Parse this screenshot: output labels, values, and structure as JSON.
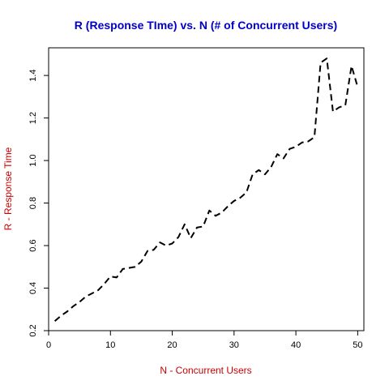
{
  "colors": {
    "title": "#0000cc",
    "axis_label": "#cc0000",
    "line": "#000000",
    "axis": "#000000",
    "background": "#ffffff"
  },
  "chart_data": {
    "type": "line",
    "title": "R (Response TIme) vs. N (# of Concurrent Users)",
    "xlabel": "N - Concurrent Users",
    "ylabel": "R - Response Time",
    "xlim": [
      0,
      51
    ],
    "ylim": [
      0.2,
      1.53
    ],
    "xticks": [
      0,
      10,
      20,
      30,
      40,
      50
    ],
    "yticks": [
      0.2,
      0.4,
      0.6,
      0.8,
      1.0,
      1.2,
      1.4
    ],
    "xtick_labels": [
      "0",
      "10",
      "20",
      "30",
      "40",
      "50"
    ],
    "ytick_labels": [
      "0.2",
      "0.4",
      "0.6",
      "0.8",
      "1.0",
      "1.2",
      "1.4"
    ],
    "grid": false,
    "line_style": "dashed",
    "series": [
      {
        "x": [
          1,
          2,
          3,
          4,
          5,
          6,
          7,
          8,
          9,
          10,
          11,
          12,
          13,
          14,
          15,
          16,
          17,
          18,
          19,
          20,
          21,
          22,
          23,
          24,
          25,
          26,
          27,
          28,
          29,
          30,
          31,
          32,
          33,
          34,
          35,
          36,
          37,
          38,
          39,
          40,
          41,
          42,
          43,
          44,
          45,
          46,
          47,
          48,
          49,
          50
        ],
        "values": [
          0.245,
          0.27,
          0.29,
          0.315,
          0.335,
          0.36,
          0.375,
          0.39,
          0.42,
          0.455,
          0.45,
          0.49,
          0.495,
          0.5,
          0.525,
          0.575,
          0.58,
          0.615,
          0.6,
          0.61,
          0.64,
          0.7,
          0.635,
          0.685,
          0.69,
          0.765,
          0.74,
          0.755,
          0.785,
          0.81,
          0.825,
          0.85,
          0.935,
          0.955,
          0.935,
          0.97,
          1.03,
          1.01,
          1.055,
          1.065,
          1.085,
          1.09,
          1.11,
          1.46,
          1.48,
          1.23,
          1.25,
          1.26,
          1.445,
          1.345
        ]
      }
    ]
  }
}
